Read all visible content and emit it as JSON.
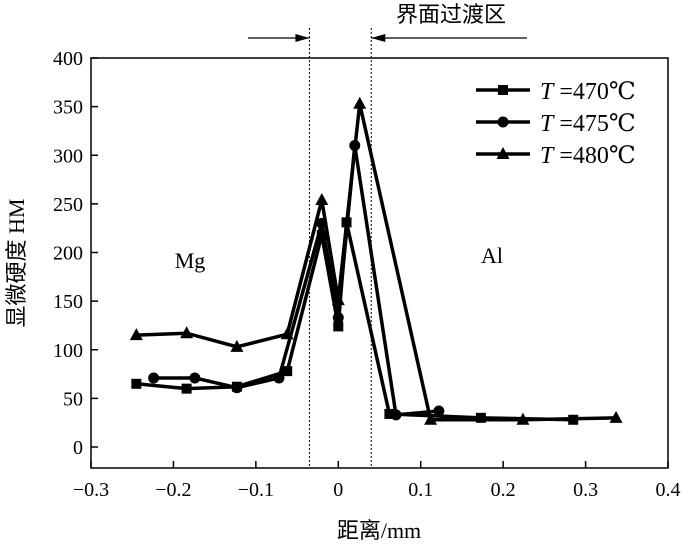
{
  "chart_data": {
    "type": "line",
    "title": "",
    "xlabel": "距离/mm",
    "ylabel": "显微硬度 HM",
    "xlim": [
      -0.3,
      0.4
    ],
    "ylim": [
      -20,
      400
    ],
    "xticks": [
      "−0.3",
      "−0.2",
      "−0.1",
      "0",
      "0.1",
      "0.2",
      "0.3",
      "0.4"
    ],
    "xtick_values": [
      -0.3,
      -0.2,
      -0.1,
      0,
      0.1,
      0.2,
      0.3,
      0.4
    ],
    "yticks": [
      "0",
      "50",
      "100",
      "150",
      "200",
      "250",
      "300",
      "350",
      "400"
    ],
    "ytick_values": [
      0,
      50,
      100,
      150,
      200,
      250,
      300,
      350,
      400
    ],
    "legend_position": "top-right",
    "annotations": {
      "zone_label": "界面过渡区",
      "zone_bounds": [
        -0.035,
        0.04
      ],
      "left_region": "Mg",
      "right_region": "Al"
    },
    "series": [
      {
        "name": "T =470℃",
        "var": "T",
        "rest": "=470℃",
        "marker": "square",
        "x": [
          -0.245,
          -0.184,
          -0.123,
          -0.062,
          -0.02,
          0,
          0.01,
          0.062,
          0.173,
          0.285
        ],
        "y": [
          65,
          60,
          62,
          78,
          218,
          124,
          231,
          34,
          30,
          28
        ]
      },
      {
        "name": "T =475℃",
        "var": "T",
        "rest": "=475℃",
        "marker": "circle",
        "x": [
          -0.224,
          -0.174,
          -0.123,
          -0.072,
          -0.02,
          0,
          0.02,
          0.07,
          0.122
        ],
        "y": [
          71,
          71,
          61,
          71,
          230,
          133,
          310,
          33,
          37
        ]
      },
      {
        "name": "T =480℃",
        "var": "T",
        "rest": "=480℃",
        "marker": "triangle",
        "x": [
          -0.245,
          -0.184,
          -0.123,
          -0.062,
          -0.02,
          0,
          0.026,
          0.112,
          0.224,
          0.337
        ],
        "y": [
          115,
          117,
          103,
          116,
          254,
          151,
          353,
          28,
          28,
          30
        ]
      }
    ]
  }
}
